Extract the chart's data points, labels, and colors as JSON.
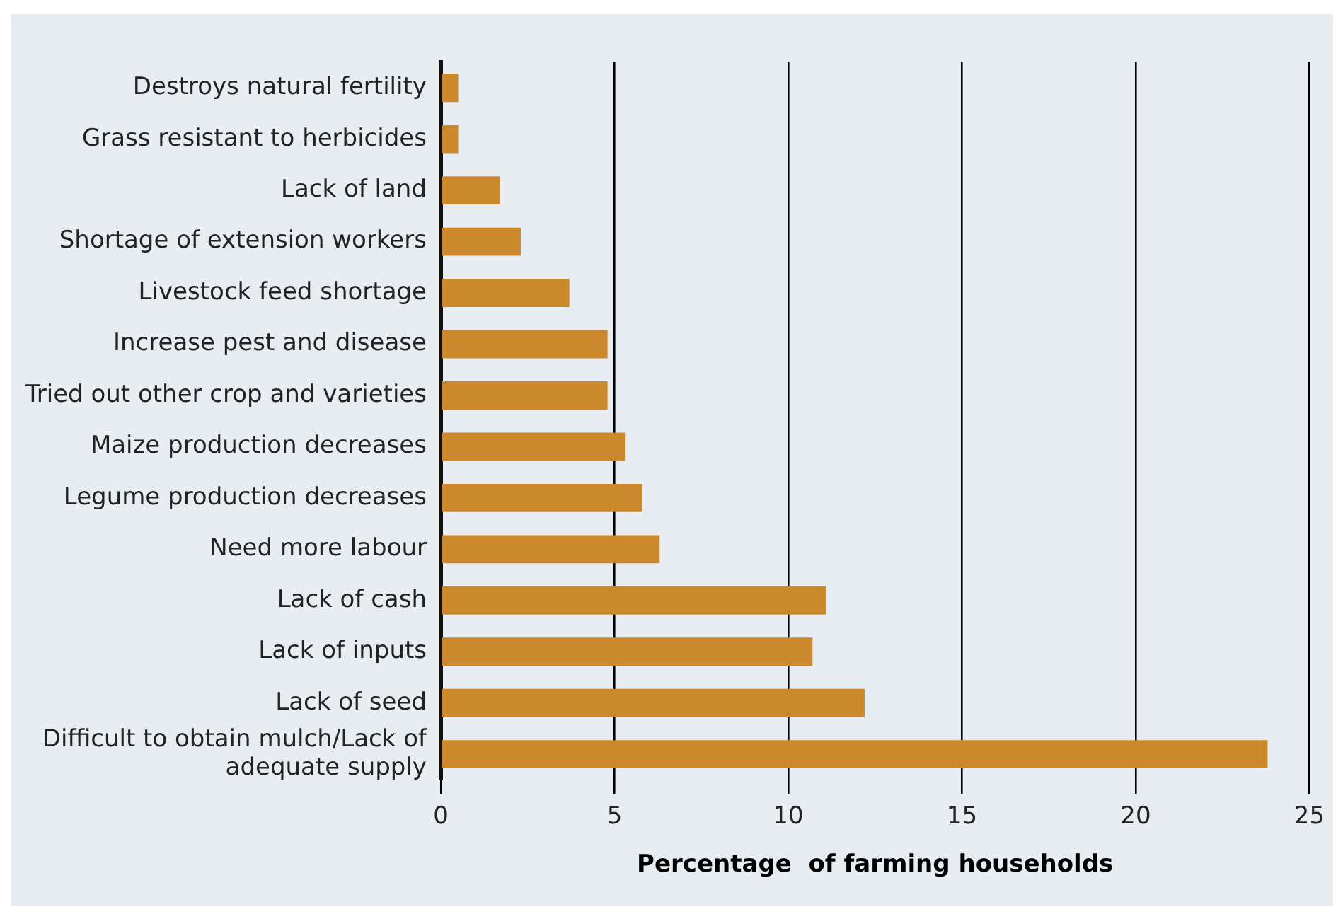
{
  "chart_data": {
    "type": "bar",
    "orientation": "horizontal",
    "xlabel": "Percentage  of farming households",
    "categories": [
      "Destroys natural fertility",
      "Grass resistant to herbicides",
      "Lack of land",
      "Shortage of extension workers",
      "Livestock feed shortage",
      "Increase pest and disease",
      "Tried out other crop and varieties",
      "Maize production decreases",
      "Legume production decreases",
      "Need more labour",
      "Lack of cash",
      "Lack of inputs",
      "Lack of seed",
      "Difficult to obtain mulch/Lack of adequate supply"
    ],
    "values": [
      0.5,
      0.5,
      1.7,
      2.3,
      3.7,
      4.8,
      4.8,
      5.3,
      5.8,
      6.3,
      11.1,
      10.7,
      12.2,
      23.8
    ],
    "color": "#cb882c",
    "xlim": [
      0,
      25
    ],
    "xticks": [
      0,
      5,
      10,
      15,
      20,
      25
    ],
    "grid": "x",
    "legend": false
  }
}
